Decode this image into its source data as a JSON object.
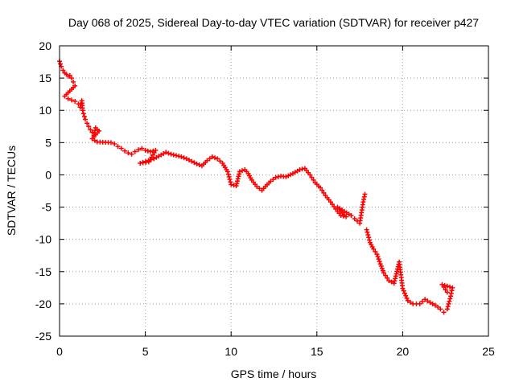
{
  "chart_data": {
    "type": "scatter",
    "title": "Day 068 of 2025, Sidereal Day-to-day VTEC variation (SDTVAR) for receiver p427",
    "xlabel": "GPS time / hours",
    "ylabel": "SDTVAR / TECUs",
    "xlim": [
      0,
      25
    ],
    "ylim": [
      -25,
      20
    ],
    "xticks": [
      "0",
      "5",
      "10",
      "15",
      "20",
      "25"
    ],
    "yticks": [
      "20",
      "15",
      "10",
      "5",
      "0",
      "-5",
      "-10",
      "-15",
      "-20",
      "-25"
    ],
    "grid": true,
    "marker": "plus",
    "color": "#ff0000",
    "series": [
      {
        "name": "SDTVAR",
        "points": [
          [
            0.0,
            17.6
          ],
          [
            0.1,
            16.8
          ],
          [
            0.2,
            16.2
          ],
          [
            0.3,
            15.8
          ],
          [
            0.4,
            15.6
          ],
          [
            0.5,
            15.3
          ],
          [
            0.6,
            15.4
          ],
          [
            0.7,
            15.0
          ],
          [
            0.8,
            14.4
          ],
          [
            0.9,
            13.8
          ],
          [
            0.3,
            12.2
          ],
          [
            0.5,
            11.8
          ],
          [
            0.7,
            11.6
          ],
          [
            0.9,
            11.4
          ],
          [
            1.1,
            11.0
          ],
          [
            1.2,
            10.5
          ],
          [
            1.3,
            11.5
          ],
          [
            1.35,
            10.0
          ],
          [
            1.4,
            9.5
          ],
          [
            1.5,
            8.6
          ],
          [
            1.6,
            8.0
          ],
          [
            1.7,
            7.5
          ],
          [
            1.8,
            7.0
          ],
          [
            1.9,
            6.6
          ],
          [
            2.0,
            6.1
          ],
          [
            2.1,
            7.3
          ],
          [
            2.2,
            7.0
          ],
          [
            2.3,
            6.8
          ],
          [
            1.9,
            5.6
          ],
          [
            2.2,
            5.1
          ],
          [
            3.0,
            5.0
          ],
          [
            3.2,
            4.8
          ],
          [
            3.4,
            4.4
          ],
          [
            3.6,
            4.1
          ],
          [
            3.8,
            3.7
          ],
          [
            4.0,
            3.4
          ],
          [
            4.2,
            3.2
          ],
          [
            4.4,
            3.6
          ],
          [
            4.6,
            3.9
          ],
          [
            4.8,
            4.1
          ],
          [
            5.0,
            3.8
          ],
          [
            5.3,
            3.6
          ],
          [
            5.6,
            3.8
          ],
          [
            5.2,
            2.0
          ],
          [
            4.7,
            1.8
          ],
          [
            5.5,
            2.5
          ],
          [
            6.2,
            3.5
          ],
          [
            6.5,
            3.2
          ],
          [
            6.8,
            3.0
          ],
          [
            7.1,
            2.8
          ],
          [
            7.4,
            2.5
          ],
          [
            7.7,
            2.1
          ],
          [
            8.0,
            1.7
          ],
          [
            8.3,
            1.4
          ],
          [
            8.6,
            2.2
          ],
          [
            8.9,
            2.8
          ],
          [
            9.2,
            2.5
          ],
          [
            9.5,
            1.8
          ],
          [
            9.8,
            0.5
          ],
          [
            10.0,
            -1.5
          ],
          [
            10.3,
            -1.7
          ],
          [
            10.5,
            0.5
          ],
          [
            10.8,
            0.8
          ],
          [
            11.0,
            0.2
          ],
          [
            11.2,
            -0.8
          ],
          [
            11.5,
            -1.8
          ],
          [
            11.8,
            -2.4
          ],
          [
            12.0,
            -1.8
          ],
          [
            12.3,
            -1.0
          ],
          [
            12.6,
            -0.4
          ],
          [
            12.9,
            -0.2
          ],
          [
            13.2,
            -0.3
          ],
          [
            13.6,
            0.2
          ],
          [
            14.0,
            0.8
          ],
          [
            14.3,
            1.0
          ],
          [
            14.6,
            0.0
          ],
          [
            14.9,
            -1.2
          ],
          [
            15.2,
            -2.0
          ],
          [
            15.5,
            -3.2
          ],
          [
            15.8,
            -4.2
          ],
          [
            16.1,
            -5.3
          ],
          [
            16.4,
            -6.3
          ],
          [
            16.7,
            -6.5
          ],
          [
            16.2,
            -5.0
          ],
          [
            17.0,
            -6.3
          ],
          [
            17.2,
            -6.8
          ],
          [
            17.5,
            -7.5
          ],
          [
            17.7,
            -4.2
          ],
          [
            17.8,
            -3.0
          ],
          [
            17.9,
            -8.5
          ],
          [
            18.1,
            -10.5
          ],
          [
            18.3,
            -11.5
          ],
          [
            18.5,
            -12.3
          ],
          [
            18.7,
            -13.8
          ],
          [
            18.9,
            -15.2
          ],
          [
            19.2,
            -16.4
          ],
          [
            19.5,
            -16.8
          ],
          [
            19.8,
            -13.5
          ],
          [
            19.9,
            -15.5
          ],
          [
            20.0,
            -17.6
          ],
          [
            20.3,
            -19.5
          ],
          [
            20.6,
            -20.0
          ],
          [
            21.0,
            -20.0
          ],
          [
            21.3,
            -19.3
          ],
          [
            21.6,
            -19.8
          ],
          [
            21.9,
            -20.2
          ],
          [
            22.2,
            -20.8
          ],
          [
            22.4,
            -21.3
          ],
          [
            22.6,
            -20.8
          ],
          [
            22.8,
            -18.8
          ],
          [
            22.9,
            -17.5
          ],
          [
            22.3,
            -17.0
          ],
          [
            22.6,
            -18.2
          ]
        ]
      }
    ]
  }
}
